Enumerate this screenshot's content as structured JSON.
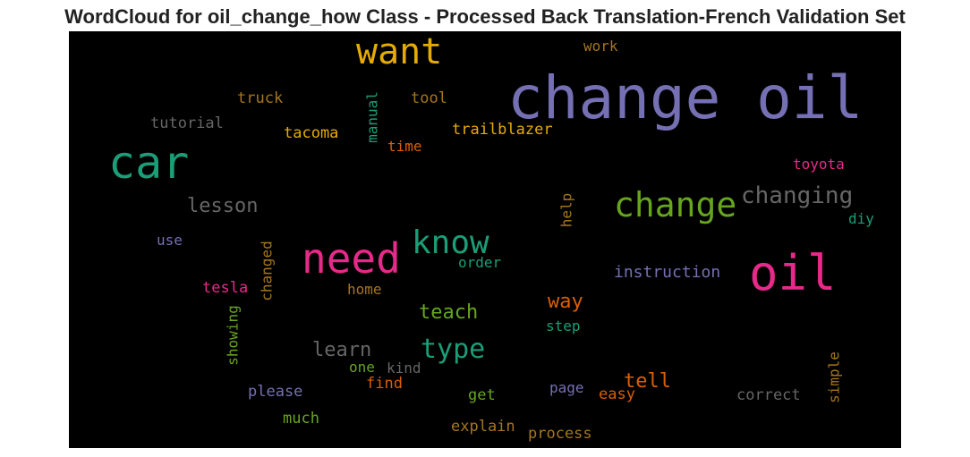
{
  "chart_data": {
    "type": "wordcloud",
    "title": "WordCloud for oil_change_how Class - Processed Back Translation-French Validation Set",
    "background": "#000000",
    "words": [
      {
        "text": "change oil",
        "color": "#7570b3"
      },
      {
        "text": "oil",
        "color": "#e7298a"
      },
      {
        "text": "car",
        "color": "#1b9e77"
      },
      {
        "text": "need",
        "color": "#e7298a"
      },
      {
        "text": "want",
        "color": "#e6ab02"
      },
      {
        "text": "change",
        "color": "#66a61e"
      },
      {
        "text": "know",
        "color": "#1b9e77"
      },
      {
        "text": "type",
        "color": "#1b9e77"
      },
      {
        "text": "changing",
        "color": "#666666"
      },
      {
        "text": "lesson",
        "color": "#666666"
      },
      {
        "text": "teach",
        "color": "#66a61e"
      },
      {
        "text": "way",
        "color": "#d95f02"
      },
      {
        "text": "learn",
        "color": "#666666"
      },
      {
        "text": "tell",
        "color": "#d95f02"
      },
      {
        "text": "instruction",
        "color": "#7570b3"
      },
      {
        "text": "trailblazer",
        "color": "#e6ab02"
      },
      {
        "text": "tacoma",
        "color": "#e6ab02"
      },
      {
        "text": "truck",
        "color": "#a6761d"
      },
      {
        "text": "tool",
        "color": "#a6761d"
      },
      {
        "text": "tutorial",
        "color": "#666666"
      },
      {
        "text": "manual",
        "color": "#1b9e77"
      },
      {
        "text": "time",
        "color": "#d95f02"
      },
      {
        "text": "work",
        "color": "#a6761d"
      },
      {
        "text": "toyota",
        "color": "#e7298a"
      },
      {
        "text": "diy",
        "color": "#1b9e77"
      },
      {
        "text": "use",
        "color": "#7570b3"
      },
      {
        "text": "help",
        "color": "#a6761d"
      },
      {
        "text": "order",
        "color": "#1b9e77"
      },
      {
        "text": "tesla",
        "color": "#e7298a"
      },
      {
        "text": "changed",
        "color": "#a6761d"
      },
      {
        "text": "home",
        "color": "#a6761d"
      },
      {
        "text": "step",
        "color": "#1b9e77"
      },
      {
        "text": "showing",
        "color": "#66a61e"
      },
      {
        "text": "one",
        "color": "#66a61e"
      },
      {
        "text": "kind",
        "color": "#666666"
      },
      {
        "text": "please",
        "color": "#7570b3"
      },
      {
        "text": "find",
        "color": "#d95f02"
      },
      {
        "text": "page",
        "color": "#7570b3"
      },
      {
        "text": "easy",
        "color": "#d95f02"
      },
      {
        "text": "correct",
        "color": "#666666"
      },
      {
        "text": "simple",
        "color": "#a6761d"
      },
      {
        "text": "get",
        "color": "#66a61e"
      },
      {
        "text": "much",
        "color": "#66a61e"
      },
      {
        "text": "explain",
        "color": "#a6761d"
      },
      {
        "text": "process",
        "color": "#a6761d"
      }
    ]
  }
}
